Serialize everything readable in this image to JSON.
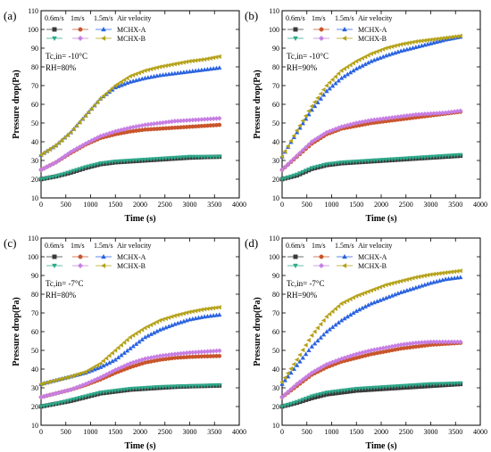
{
  "chart_data": [
    {
      "type": "scatter",
      "panel_label": "(a)",
      "xlabel": "Time (s)",
      "ylabel": "Pressure drop(Pa)",
      "xlim": [
        0,
        4000
      ],
      "ylim": [
        10,
        110
      ],
      "xticks": [
        0,
        500,
        1000,
        1500,
        2000,
        2500,
        3000,
        3500,
        4000
      ],
      "yticks": [
        10,
        20,
        30,
        40,
        50,
        60,
        70,
        80,
        90,
        100,
        110
      ],
      "condition_lines": [
        "Tc,in= -10°C",
        "RH=80%"
      ],
      "legend": {
        "velocity_labels": [
          "0.6m/s",
          "1m/s",
          "1.5m/s",
          "Air velocity"
        ],
        "rows": [
          "MCHX-A",
          "MCHX-B"
        ]
      },
      "series": [
        {
          "velocity": "0.6m/s",
          "hx": "MCHX-A",
          "marker": "square",
          "color": "#3a3a3a",
          "x": [
            0,
            300,
            600,
            900,
            1200,
            1500,
            1800,
            2100,
            2400,
            2700,
            3000,
            3300,
            3600
          ],
          "y": [
            20,
            21.5,
            23.5,
            26,
            28,
            29,
            29.5,
            30,
            30.5,
            31,
            31.5,
            31.8,
            32
          ]
        },
        {
          "velocity": "0.6m/s",
          "hx": "MCHX-B",
          "marker": "triangle-down",
          "color": "#2fa88a",
          "x": [
            0,
            300,
            600,
            900,
            1200,
            1500,
            1800,
            2100,
            2400,
            2700,
            3000,
            3300,
            3600
          ],
          "y": [
            20,
            21.5,
            24,
            26.5,
            28.5,
            29.5,
            30,
            30.5,
            31,
            31.5,
            32,
            32,
            32
          ]
        },
        {
          "velocity": "1m/s",
          "hx": "MCHX-A",
          "marker": "circle",
          "color": "#c8552b",
          "x": [
            0,
            300,
            600,
            900,
            1200,
            1500,
            1800,
            2100,
            2400,
            2700,
            3000,
            3300,
            3600
          ],
          "y": [
            25,
            29,
            34,
            38.5,
            42,
            44,
            45.5,
            46.5,
            47,
            47.5,
            48,
            48.5,
            49
          ]
        },
        {
          "velocity": "1m/s",
          "hx": "MCHX-B",
          "marker": "diamond",
          "color": "#c77ee3",
          "x": [
            0,
            300,
            600,
            900,
            1200,
            1500,
            1800,
            2100,
            2400,
            2700,
            3000,
            3300,
            3600
          ],
          "y": [
            25,
            29,
            34.5,
            39,
            43,
            45.5,
            47.5,
            49,
            50,
            51,
            51.5,
            52,
            52.5
          ]
        },
        {
          "velocity": "1.5m/s",
          "hx": "MCHX-A",
          "marker": "triangle-up",
          "color": "#2962e0",
          "x": [
            0,
            300,
            600,
            900,
            1200,
            1500,
            1800,
            2100,
            2400,
            2700,
            3000,
            3300,
            3600
          ],
          "y": [
            33,
            38,
            45,
            54,
            63,
            69,
            72,
            74,
            75.5,
            76.5,
            77.5,
            78.5,
            79.5
          ]
        },
        {
          "velocity": "1.5m/s",
          "hx": "MCHX-B",
          "marker": "triangle-left",
          "color": "#b5a21a",
          "x": [
            0,
            300,
            600,
            900,
            1200,
            1500,
            1800,
            2100,
            2400,
            2700,
            3000,
            3300,
            3600
          ],
          "y": [
            33,
            38,
            45,
            54,
            63,
            70,
            75,
            78,
            80,
            81.5,
            83,
            84,
            85.5
          ]
        }
      ]
    },
    {
      "type": "scatter",
      "panel_label": "(b)",
      "xlabel": "Time (s)",
      "ylabel": "Pressure drop(Pa)",
      "xlim": [
        0,
        4000
      ],
      "ylim": [
        10,
        110
      ],
      "xticks": [
        0,
        500,
        1000,
        1500,
        2000,
        2500,
        3000,
        3500,
        4000
      ],
      "yticks": [
        10,
        20,
        30,
        40,
        50,
        60,
        70,
        80,
        90,
        100,
        110
      ],
      "condition_lines": [
        "Tc,in= -10°C",
        "RH=90%"
      ],
      "legend": {
        "velocity_labels": [
          "0.6m/s",
          "1m/s",
          "1.5m/s",
          "Air velocity"
        ],
        "rows": [
          "MCHX-A",
          "MCHX-B"
        ]
      },
      "series": [
        {
          "velocity": "0.6m/s",
          "hx": "MCHX-A",
          "marker": "square",
          "color": "#3a3a3a",
          "x": [
            0,
            300,
            600,
            900,
            1200,
            1500,
            1800,
            2100,
            2400,
            2700,
            3000,
            3300,
            3600
          ],
          "y": [
            20,
            22,
            25.5,
            27.5,
            28.5,
            29,
            29.5,
            30,
            30.5,
            31,
            31.5,
            32,
            32.5
          ]
        },
        {
          "velocity": "0.6m/s",
          "hx": "MCHX-B",
          "marker": "triangle-down",
          "color": "#2fa88a",
          "x": [
            0,
            300,
            600,
            900,
            1200,
            1500,
            1800,
            2100,
            2400,
            2700,
            3000,
            3300,
            3600
          ],
          "y": [
            20,
            22.5,
            26,
            28,
            29,
            29.5,
            30,
            30.5,
            31,
            31.5,
            32,
            32.5,
            33
          ]
        },
        {
          "velocity": "1m/s",
          "hx": "MCHX-A",
          "marker": "circle",
          "color": "#c8552b",
          "x": [
            0,
            300,
            600,
            900,
            1200,
            1500,
            1800,
            2100,
            2400,
            2700,
            3000,
            3300,
            3600
          ],
          "y": [
            25,
            32,
            39,
            44,
            47,
            48.5,
            50,
            51,
            52,
            53,
            54,
            55,
            56
          ]
        },
        {
          "velocity": "1m/s",
          "hx": "MCHX-B",
          "marker": "diamond",
          "color": "#c77ee3",
          "x": [
            0,
            300,
            600,
            900,
            1200,
            1500,
            1800,
            2100,
            2400,
            2700,
            3000,
            3300,
            3600
          ],
          "y": [
            25,
            32.5,
            40,
            45,
            48,
            50,
            51.5,
            52.5,
            53.5,
            54.5,
            55,
            55.5,
            56.5
          ]
        },
        {
          "velocity": "1.5m/s",
          "hx": "MCHX-A",
          "marker": "triangle-up",
          "color": "#2962e0",
          "x": [
            0,
            300,
            600,
            900,
            1200,
            1500,
            1800,
            2100,
            2400,
            2700,
            3000,
            3300,
            3600
          ],
          "y": [
            32,
            45,
            57,
            67,
            74,
            79,
            83,
            86,
            88.5,
            90.5,
            92.5,
            94.5,
            96
          ]
        },
        {
          "velocity": "1.5m/s",
          "hx": "MCHX-B",
          "marker": "triangle-left",
          "color": "#b5a21a",
          "x": [
            0,
            300,
            600,
            900,
            1200,
            1500,
            1800,
            2100,
            2400,
            2700,
            3000,
            3300,
            3600
          ],
          "y": [
            32,
            46,
            59,
            70,
            78,
            83,
            87,
            90,
            92,
            93.5,
            94.5,
            95.5,
            96.5
          ]
        }
      ]
    },
    {
      "type": "scatter",
      "panel_label": "(c)",
      "xlabel": "Time (s)",
      "ylabel": "Pressure drop(Pa)",
      "xlim": [
        0,
        4000
      ],
      "ylim": [
        10,
        110
      ],
      "xticks": [
        0,
        500,
        1000,
        1500,
        2000,
        2500,
        3000,
        3500,
        4000
      ],
      "yticks": [
        10,
        20,
        30,
        40,
        50,
        60,
        70,
        80,
        90,
        100,
        110
      ],
      "condition_lines": [
        "Tc,in= -7°C",
        "RH=80%"
      ],
      "legend": {
        "velocity_labels": [
          "0.6m/s",
          "1m/s",
          "1.5m/s",
          "Air velocity"
        ],
        "rows": [
          "MCHX-A",
          "MCHX-B"
        ]
      },
      "series": [
        {
          "velocity": "0.6m/s",
          "hx": "MCHX-A",
          "marker": "square",
          "color": "#3a3a3a",
          "x": [
            0,
            300,
            600,
            900,
            1200,
            1500,
            1800,
            2100,
            2400,
            2700,
            3000,
            3300,
            3600
          ],
          "y": [
            20,
            21.5,
            23,
            25,
            27,
            28,
            29,
            29.5,
            30,
            30.5,
            30.8,
            31,
            31.2
          ]
        },
        {
          "velocity": "0.6m/s",
          "hx": "MCHX-B",
          "marker": "triangle-down",
          "color": "#2fa88a",
          "x": [
            0,
            300,
            600,
            900,
            1200,
            1500,
            1800,
            2100,
            2400,
            2700,
            3000,
            3300,
            3600
          ],
          "y": [
            20,
            21.5,
            23.5,
            25.5,
            27.5,
            28.5,
            29.5,
            30,
            30.5,
            30.8,
            31,
            31.2,
            31.5
          ]
        },
        {
          "velocity": "1m/s",
          "hx": "MCHX-A",
          "marker": "circle",
          "color": "#c8552b",
          "x": [
            0,
            300,
            600,
            900,
            1200,
            1500,
            1800,
            2100,
            2400,
            2700,
            3000,
            3300,
            3600
          ],
          "y": [
            25,
            27,
            29,
            31.5,
            34.5,
            38,
            41,
            43.5,
            45,
            46,
            46.5,
            46.8,
            47
          ]
        },
        {
          "velocity": "1m/s",
          "hx": "MCHX-B",
          "marker": "diamond",
          "color": "#c77ee3",
          "x": [
            0,
            300,
            600,
            900,
            1200,
            1500,
            1800,
            2100,
            2400,
            2700,
            3000,
            3300,
            3600
          ],
          "y": [
            25,
            27,
            29,
            32,
            35.5,
            39.5,
            43,
            45.5,
            47,
            48,
            48.8,
            49.3,
            49.8
          ]
        },
        {
          "velocity": "1.5m/s",
          "hx": "MCHX-A",
          "marker": "triangle-up",
          "color": "#2962e0",
          "x": [
            0,
            300,
            600,
            900,
            1200,
            1500,
            1800,
            2100,
            2400,
            2700,
            3000,
            3300,
            3600
          ],
          "y": [
            32,
            34,
            36,
            38,
            41,
            45,
            51,
            57,
            61,
            64,
            66.5,
            68,
            69
          ]
        },
        {
          "velocity": "1.5m/s",
          "hx": "MCHX-B",
          "marker": "triangle-left",
          "color": "#b5a21a",
          "x": [
            0,
            300,
            600,
            900,
            1200,
            1500,
            1800,
            2100,
            2400,
            2700,
            3000,
            3300,
            3600
          ],
          "y": [
            32,
            34,
            36,
            38.5,
            43,
            50,
            57,
            62,
            66,
            68.5,
            70.5,
            72,
            73
          ]
        }
      ]
    },
    {
      "type": "scatter",
      "panel_label": "(d)",
      "xlabel": "Time (s)",
      "ylabel": "Pressure drop(Pa)",
      "xlim": [
        0,
        4000
      ],
      "ylim": [
        10,
        110
      ],
      "xticks": [
        0,
        500,
        1000,
        1500,
        2000,
        2500,
        3000,
        3500,
        4000
      ],
      "yticks": [
        10,
        20,
        30,
        40,
        50,
        60,
        70,
        80,
        90,
        100,
        110
      ],
      "condition_lines": [
        "Tc,in= -7°C",
        "RH=90%"
      ],
      "legend": {
        "velocity_labels": [
          "0.6m/s",
          "1m/s",
          "1.5m/s",
          "Air velocity"
        ],
        "rows": [
          "MCHX-A",
          "MCHX-B"
        ]
      },
      "series": [
        {
          "velocity": "0.6m/s",
          "hx": "MCHX-A",
          "marker": "square",
          "color": "#3a3a3a",
          "x": [
            0,
            300,
            600,
            900,
            1200,
            1500,
            1800,
            2100,
            2400,
            2700,
            3000,
            3300,
            3600
          ],
          "y": [
            20,
            22,
            24.5,
            26.5,
            27.5,
            28.5,
            29,
            29.5,
            30,
            30.5,
            31,
            31.5,
            32
          ]
        },
        {
          "velocity": "0.6m/s",
          "hx": "MCHX-B",
          "marker": "triangle-down",
          "color": "#2fa88a",
          "x": [
            0,
            300,
            600,
            900,
            1200,
            1500,
            1800,
            2100,
            2400,
            2700,
            3000,
            3300,
            3600
          ],
          "y": [
            20,
            22.5,
            25.5,
            27.5,
            28.5,
            29.5,
            30,
            30.5,
            31,
            31.5,
            32,
            32.2,
            32.5
          ]
        },
        {
          "velocity": "1m/s",
          "hx": "MCHX-A",
          "marker": "circle",
          "color": "#c8552b",
          "x": [
            0,
            300,
            600,
            900,
            1200,
            1500,
            1800,
            2100,
            2400,
            2700,
            3000,
            3300,
            3600
          ],
          "y": [
            25,
            31,
            37,
            41,
            44,
            46,
            48,
            49.5,
            51,
            52,
            53,
            53.5,
            54
          ]
        },
        {
          "velocity": "1m/s",
          "hx": "MCHX-B",
          "marker": "diamond",
          "color": "#c77ee3",
          "x": [
            0,
            300,
            600,
            900,
            1200,
            1500,
            1800,
            2100,
            2400,
            2700,
            3000,
            3300,
            3600
          ],
          "y": [
            25,
            32,
            38,
            42.5,
            45.5,
            48,
            50,
            51.5,
            53,
            54,
            54.5,
            54.5,
            54.5
          ]
        },
        {
          "velocity": "1.5m/s",
          "hx": "MCHX-A",
          "marker": "triangle-up",
          "color": "#2962e0",
          "x": [
            0,
            300,
            600,
            900,
            1200,
            1500,
            1800,
            2100,
            2400,
            2700,
            3000,
            3300,
            3600
          ],
          "y": [
            32,
            42,
            52,
            60,
            66,
            71,
            75,
            78,
            81,
            83.5,
            86,
            88,
            89
          ]
        },
        {
          "velocity": "1.5m/s",
          "hx": "MCHX-B",
          "marker": "triangle-left",
          "color": "#b5a21a",
          "x": [
            0,
            300,
            600,
            900,
            1200,
            1500,
            1800,
            2100,
            2400,
            2700,
            3000,
            3300,
            3600
          ],
          "y": [
            33,
            45,
            58,
            68,
            75,
            79,
            82,
            85,
            87,
            89,
            90.5,
            91.5,
            92.5
          ]
        }
      ]
    }
  ]
}
